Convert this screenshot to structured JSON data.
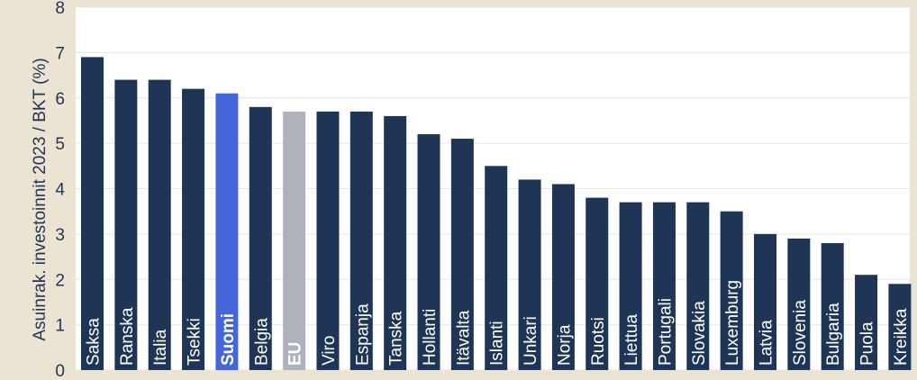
{
  "chart_data": {
    "type": "bar",
    "title": "",
    "xlabel": "",
    "ylabel": "Asuinrak. investoinnit 2023 / BKT (%)",
    "ylim": [
      0,
      8
    ],
    "yticks": [
      0,
      1,
      2,
      3,
      4,
      5,
      6,
      7,
      8
    ],
    "grid": true,
    "legend": "none",
    "categories": [
      "Saksa",
      "Ranska",
      "Italia",
      "Tsekki",
      "Suomi",
      "Belgia",
      "EU",
      "Viro",
      "Espanja",
      "Tanska",
      "Hollanti",
      "Itävalta",
      "Islanti",
      "Unkari",
      "Norja",
      "Ruotsi",
      "Liettua",
      "Portugali",
      "Slovakia",
      "Luxemburg",
      "Latvia",
      "Slovenia",
      "Bulgaria",
      "Puola",
      "Kreikka"
    ],
    "values": [
      6.9,
      6.4,
      6.4,
      6.2,
      6.1,
      5.8,
      5.7,
      5.7,
      5.7,
      5.6,
      5.2,
      5.1,
      4.5,
      4.2,
      4.1,
      3.8,
      3.7,
      3.7,
      3.7,
      3.5,
      3.0,
      2.9,
      2.8,
      2.1,
      1.9
    ],
    "highlight": {
      "Suomi": "finland",
      "EU": "eu"
    },
    "bold_labels": [
      "Suomi",
      "EU"
    ],
    "colors": {
      "default_bar": "#1e3556",
      "finland_bar": "#4466d8",
      "eu_bar": "#aeb3bb",
      "background": "#ece4d3",
      "plot_background": "#ffffff",
      "grid": "#e6e6e6",
      "text": "#1e3556",
      "bar_label": "#ffffff"
    }
  }
}
